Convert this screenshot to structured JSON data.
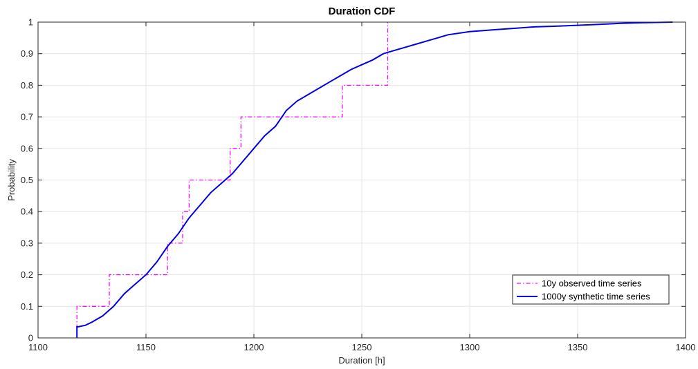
{
  "chart_data": {
    "type": "line",
    "title": "Duration CDF",
    "xlabel": "Duration [h]",
    "ylabel": "Probability",
    "xlim": [
      1100,
      1400
    ],
    "ylim": [
      0,
      1
    ],
    "xticks": [
      1100,
      1150,
      1200,
      1250,
      1300,
      1350,
      1400
    ],
    "yticks": [
      0,
      0.1,
      0.2,
      0.3,
      0.4,
      0.5,
      0.6,
      0.7,
      0.8,
      0.9,
      1
    ],
    "xtick_labels": [
      "1100",
      "1150",
      "1200",
      "1250",
      "1300",
      "1350",
      "1400"
    ],
    "ytick_labels": [
      "0",
      "0.1",
      "0.2",
      "0.3",
      "0.4",
      "0.5",
      "0.6",
      "0.7",
      "0.8",
      "0.9",
      "1"
    ],
    "grid": true,
    "legend_position": "bottom-right",
    "series": [
      {
        "name": "10y observed time series",
        "color": "#ff00ff",
        "style": "dash-dot",
        "step": true,
        "x": [
          1118,
          1118,
          1133,
          1133,
          1160,
          1160,
          1167,
          1167,
          1170,
          1170,
          1189,
          1189,
          1194,
          1194,
          1241,
          1241,
          1262,
          1262
        ],
        "y": [
          0,
          0.1,
          0.1,
          0.2,
          0.2,
          0.3,
          0.3,
          0.4,
          0.4,
          0.5,
          0.5,
          0.6,
          0.6,
          0.7,
          0.7,
          0.8,
          0.8,
          1.0
        ]
      },
      {
        "name": "1000y synthetic time series",
        "color": "#0000e6",
        "style": "solid",
        "step": false,
        "x": [
          1118,
          1118,
          1118.5,
          1122,
          1125,
          1130,
          1135,
          1140,
          1145,
          1150,
          1155,
          1160,
          1165,
          1170,
          1175,
          1180,
          1185,
          1190,
          1195,
          1200,
          1205,
          1210,
          1215,
          1220,
          1225,
          1230,
          1235,
          1240,
          1245,
          1250,
          1255,
          1260,
          1265,
          1270,
          1275,
          1280,
          1285,
          1290,
          1300,
          1310,
          1320,
          1330,
          1340,
          1350,
          1360,
          1370,
          1380,
          1394
        ],
        "y": [
          0,
          0.035,
          0.035,
          0.04,
          0.05,
          0.07,
          0.1,
          0.14,
          0.17,
          0.2,
          0.24,
          0.29,
          0.33,
          0.38,
          0.42,
          0.46,
          0.49,
          0.52,
          0.56,
          0.6,
          0.64,
          0.67,
          0.72,
          0.75,
          0.77,
          0.79,
          0.81,
          0.83,
          0.85,
          0.865,
          0.88,
          0.9,
          0.91,
          0.92,
          0.93,
          0.94,
          0.95,
          0.96,
          0.97,
          0.975,
          0.98,
          0.985,
          0.987,
          0.99,
          0.993,
          0.996,
          0.998,
          1.0
        ]
      }
    ]
  }
}
